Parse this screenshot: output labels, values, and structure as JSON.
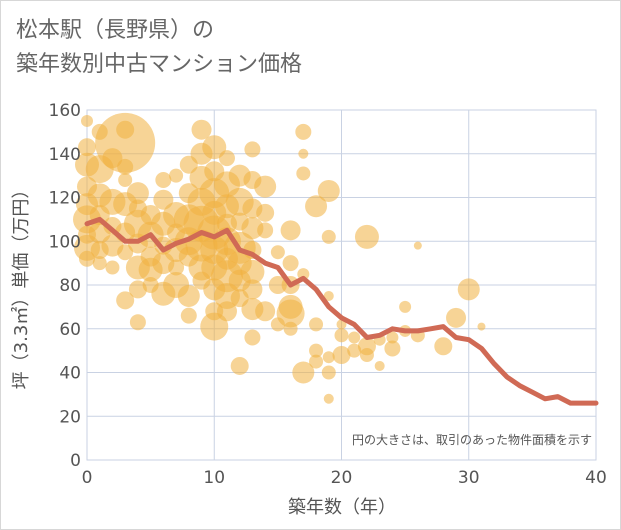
{
  "title": {
    "line1": "松本駅（長野県）の",
    "line2": "築年数別中古マンション価格"
  },
  "chart_data": {
    "type": "scatter",
    "xlabel": "築年数（年）",
    "ylabel": "坪（3.3㎡）単価（万円）",
    "xlim": [
      0,
      40
    ],
    "ylim": [
      0,
      160
    ],
    "xticks": [
      0,
      10,
      20,
      30,
      40
    ],
    "yticks": [
      0,
      20,
      40,
      60,
      80,
      100,
      120,
      140,
      160
    ],
    "grid": true,
    "note": "円の大きさは、取引のあった物件面積を示す",
    "colors": {
      "bubble": "#f0b040",
      "line": "#d06a55",
      "grid": "#c9d2e3",
      "axis_text": "#555555"
    },
    "series": [
      {
        "type": "bubble",
        "points": [
          [
            0,
            155,
            6
          ],
          [
            0,
            143,
            9
          ],
          [
            0,
            135,
            12
          ],
          [
            0,
            125,
            10
          ],
          [
            0,
            117,
            11
          ],
          [
            0,
            110,
            14
          ],
          [
            0,
            103,
            9
          ],
          [
            0,
            97,
            13
          ],
          [
            0,
            92,
            8
          ],
          [
            1,
            150,
            8
          ],
          [
            1,
            133,
            14
          ],
          [
            1,
            121,
            12
          ],
          [
            1,
            112,
            10
          ],
          [
            1,
            104,
            11
          ],
          [
            1,
            96,
            9
          ],
          [
            1,
            90,
            7
          ],
          [
            2,
            138,
            10
          ],
          [
            2,
            118,
            13
          ],
          [
            2,
            107,
            9
          ],
          [
            2,
            98,
            11
          ],
          [
            2,
            88,
            7
          ],
          [
            3,
            151,
            9
          ],
          [
            3,
            145,
            30
          ],
          [
            3,
            134,
            8
          ],
          [
            3,
            128,
            7
          ],
          [
            3,
            117,
            12
          ],
          [
            3,
            104,
            10
          ],
          [
            3,
            95,
            8
          ],
          [
            3,
            73,
            9
          ],
          [
            4,
            122,
            11
          ],
          [
            4,
            115,
            9
          ],
          [
            4,
            108,
            14
          ],
          [
            4,
            99,
            10
          ],
          [
            4,
            88,
            12
          ],
          [
            4,
            78,
            9
          ],
          [
            4,
            63,
            8
          ],
          [
            5,
            112,
            10
          ],
          [
            5,
            103,
            13
          ],
          [
            5,
            93,
            10
          ],
          [
            5,
            87,
            12
          ],
          [
            5,
            80,
            8
          ],
          [
            6,
            128,
            8
          ],
          [
            6,
            119,
            10
          ],
          [
            6,
            108,
            12
          ],
          [
            6,
            98,
            9
          ],
          [
            6,
            90,
            11
          ],
          [
            6,
            76,
            12
          ],
          [
            7,
            130,
            7
          ],
          [
            7,
            112,
            13
          ],
          [
            7,
            104,
            9
          ],
          [
            7,
            96,
            12
          ],
          [
            7,
            88,
            8
          ],
          [
            7,
            80,
            13
          ],
          [
            8,
            135,
            9
          ],
          [
            8,
            122,
            10
          ],
          [
            8,
            110,
            15
          ],
          [
            8,
            100,
            14
          ],
          [
            8,
            93,
            10
          ],
          [
            8,
            75,
            11
          ],
          [
            8,
            66,
            8
          ],
          [
            9,
            151,
            10
          ],
          [
            9,
            140,
            11
          ],
          [
            9,
            129,
            12
          ],
          [
            9,
            118,
            14
          ],
          [
            9,
            108,
            18
          ],
          [
            9,
            98,
            16
          ],
          [
            9,
            88,
            13
          ],
          [
            9,
            82,
            9
          ],
          [
            10,
            143,
            12
          ],
          [
            10,
            132,
            10
          ],
          [
            10,
            122,
            15
          ],
          [
            10,
            113,
            12
          ],
          [
            10,
            104,
            17
          ],
          [
            10,
            96,
            14
          ],
          [
            10,
            88,
            13
          ],
          [
            10,
            78,
            11
          ],
          [
            10,
            68,
            9
          ],
          [
            10,
            61,
            14
          ],
          [
            11,
            138,
            8
          ],
          [
            11,
            126,
            13
          ],
          [
            11,
            116,
            12
          ],
          [
            11,
            108,
            10
          ],
          [
            11,
            100,
            14
          ],
          [
            11,
            92,
            11
          ],
          [
            11,
            84,
            16
          ],
          [
            11,
            75,
            13
          ],
          [
            11,
            68,
            10
          ],
          [
            12,
            130,
            11
          ],
          [
            12,
            118,
            14
          ],
          [
            12,
            109,
            9
          ],
          [
            12,
            97,
            16
          ],
          [
            12,
            90,
            12
          ],
          [
            12,
            82,
            11
          ],
          [
            12,
            74,
            9
          ],
          [
            12,
            43,
            9
          ],
          [
            13,
            142,
            8
          ],
          [
            13,
            128,
            9
          ],
          [
            13,
            115,
            10
          ],
          [
            13,
            106,
            11
          ],
          [
            13,
            96,
            9
          ],
          [
            13,
            86,
            12
          ],
          [
            13,
            78,
            10
          ],
          [
            13,
            69,
            11
          ],
          [
            13,
            56,
            8
          ],
          [
            14,
            125,
            11
          ],
          [
            14,
            113,
            9
          ],
          [
            14,
            105,
            8
          ],
          [
            14,
            68,
            10
          ],
          [
            15,
            95,
            7
          ],
          [
            15,
            80,
            9
          ],
          [
            15,
            62,
            7
          ],
          [
            16,
            105,
            10
          ],
          [
            16,
            90,
            8
          ],
          [
            16,
            80,
            9
          ],
          [
            16,
            70,
            12
          ],
          [
            16,
            67,
            14
          ],
          [
            16,
            60,
            7
          ],
          [
            17,
            150,
            8
          ],
          [
            17,
            140,
            5
          ],
          [
            17,
            131,
            7
          ],
          [
            17,
            40,
            11
          ],
          [
            17,
            85,
            6
          ],
          [
            18,
            116,
            11
          ],
          [
            18,
            62,
            7
          ],
          [
            18,
            50,
            7
          ],
          [
            18,
            45,
            7
          ],
          [
            19,
            123,
            11
          ],
          [
            19,
            102,
            7
          ],
          [
            19,
            75,
            5
          ],
          [
            19,
            47,
            6
          ],
          [
            19,
            40,
            7
          ],
          [
            19,
            28,
            5
          ],
          [
            20,
            48,
            9
          ],
          [
            20,
            57,
            7
          ],
          [
            20,
            62,
            5
          ],
          [
            21,
            56,
            6
          ],
          [
            21,
            50,
            7
          ],
          [
            22,
            102,
            12
          ],
          [
            22,
            52,
            9
          ],
          [
            22,
            48,
            7
          ],
          [
            23,
            55,
            6
          ],
          [
            23,
            43,
            5
          ],
          [
            24,
            51,
            8
          ],
          [
            24,
            56,
            6
          ],
          [
            25,
            70,
            6
          ],
          [
            25,
            59,
            6
          ],
          [
            26,
            98,
            4
          ],
          [
            26,
            57,
            7
          ],
          [
            28,
            52,
            9
          ],
          [
            29,
            65,
            10
          ],
          [
            30,
            78,
            11
          ],
          [
            31,
            61,
            4
          ]
        ]
      },
      {
        "type": "line",
        "points": [
          [
            0,
            108
          ],
          [
            1,
            110
          ],
          [
            2,
            105
          ],
          [
            3,
            100
          ],
          [
            4,
            100
          ],
          [
            5,
            103
          ],
          [
            6,
            96
          ],
          [
            7,
            99
          ],
          [
            8,
            101
          ],
          [
            9,
            104
          ],
          [
            10,
            102
          ],
          [
            11,
            105
          ],
          [
            12,
            96
          ],
          [
            13,
            94
          ],
          [
            14,
            90
          ],
          [
            15,
            88
          ],
          [
            16,
            80
          ],
          [
            17,
            83
          ],
          [
            18,
            78
          ],
          [
            19,
            70
          ],
          [
            20,
            65
          ],
          [
            21,
            62
          ],
          [
            22,
            56
          ],
          [
            23,
            57
          ],
          [
            24,
            60
          ],
          [
            25,
            59
          ],
          [
            26,
            59
          ],
          [
            27,
            60
          ],
          [
            28,
            61
          ],
          [
            29,
            56
          ],
          [
            30,
            55
          ],
          [
            31,
            51
          ],
          [
            32,
            44
          ],
          [
            33,
            38
          ],
          [
            34,
            34
          ],
          [
            35,
            31
          ],
          [
            36,
            28
          ],
          [
            37,
            29
          ],
          [
            38,
            26
          ],
          [
            39,
            26
          ],
          [
            40,
            26
          ]
        ]
      }
    ]
  }
}
